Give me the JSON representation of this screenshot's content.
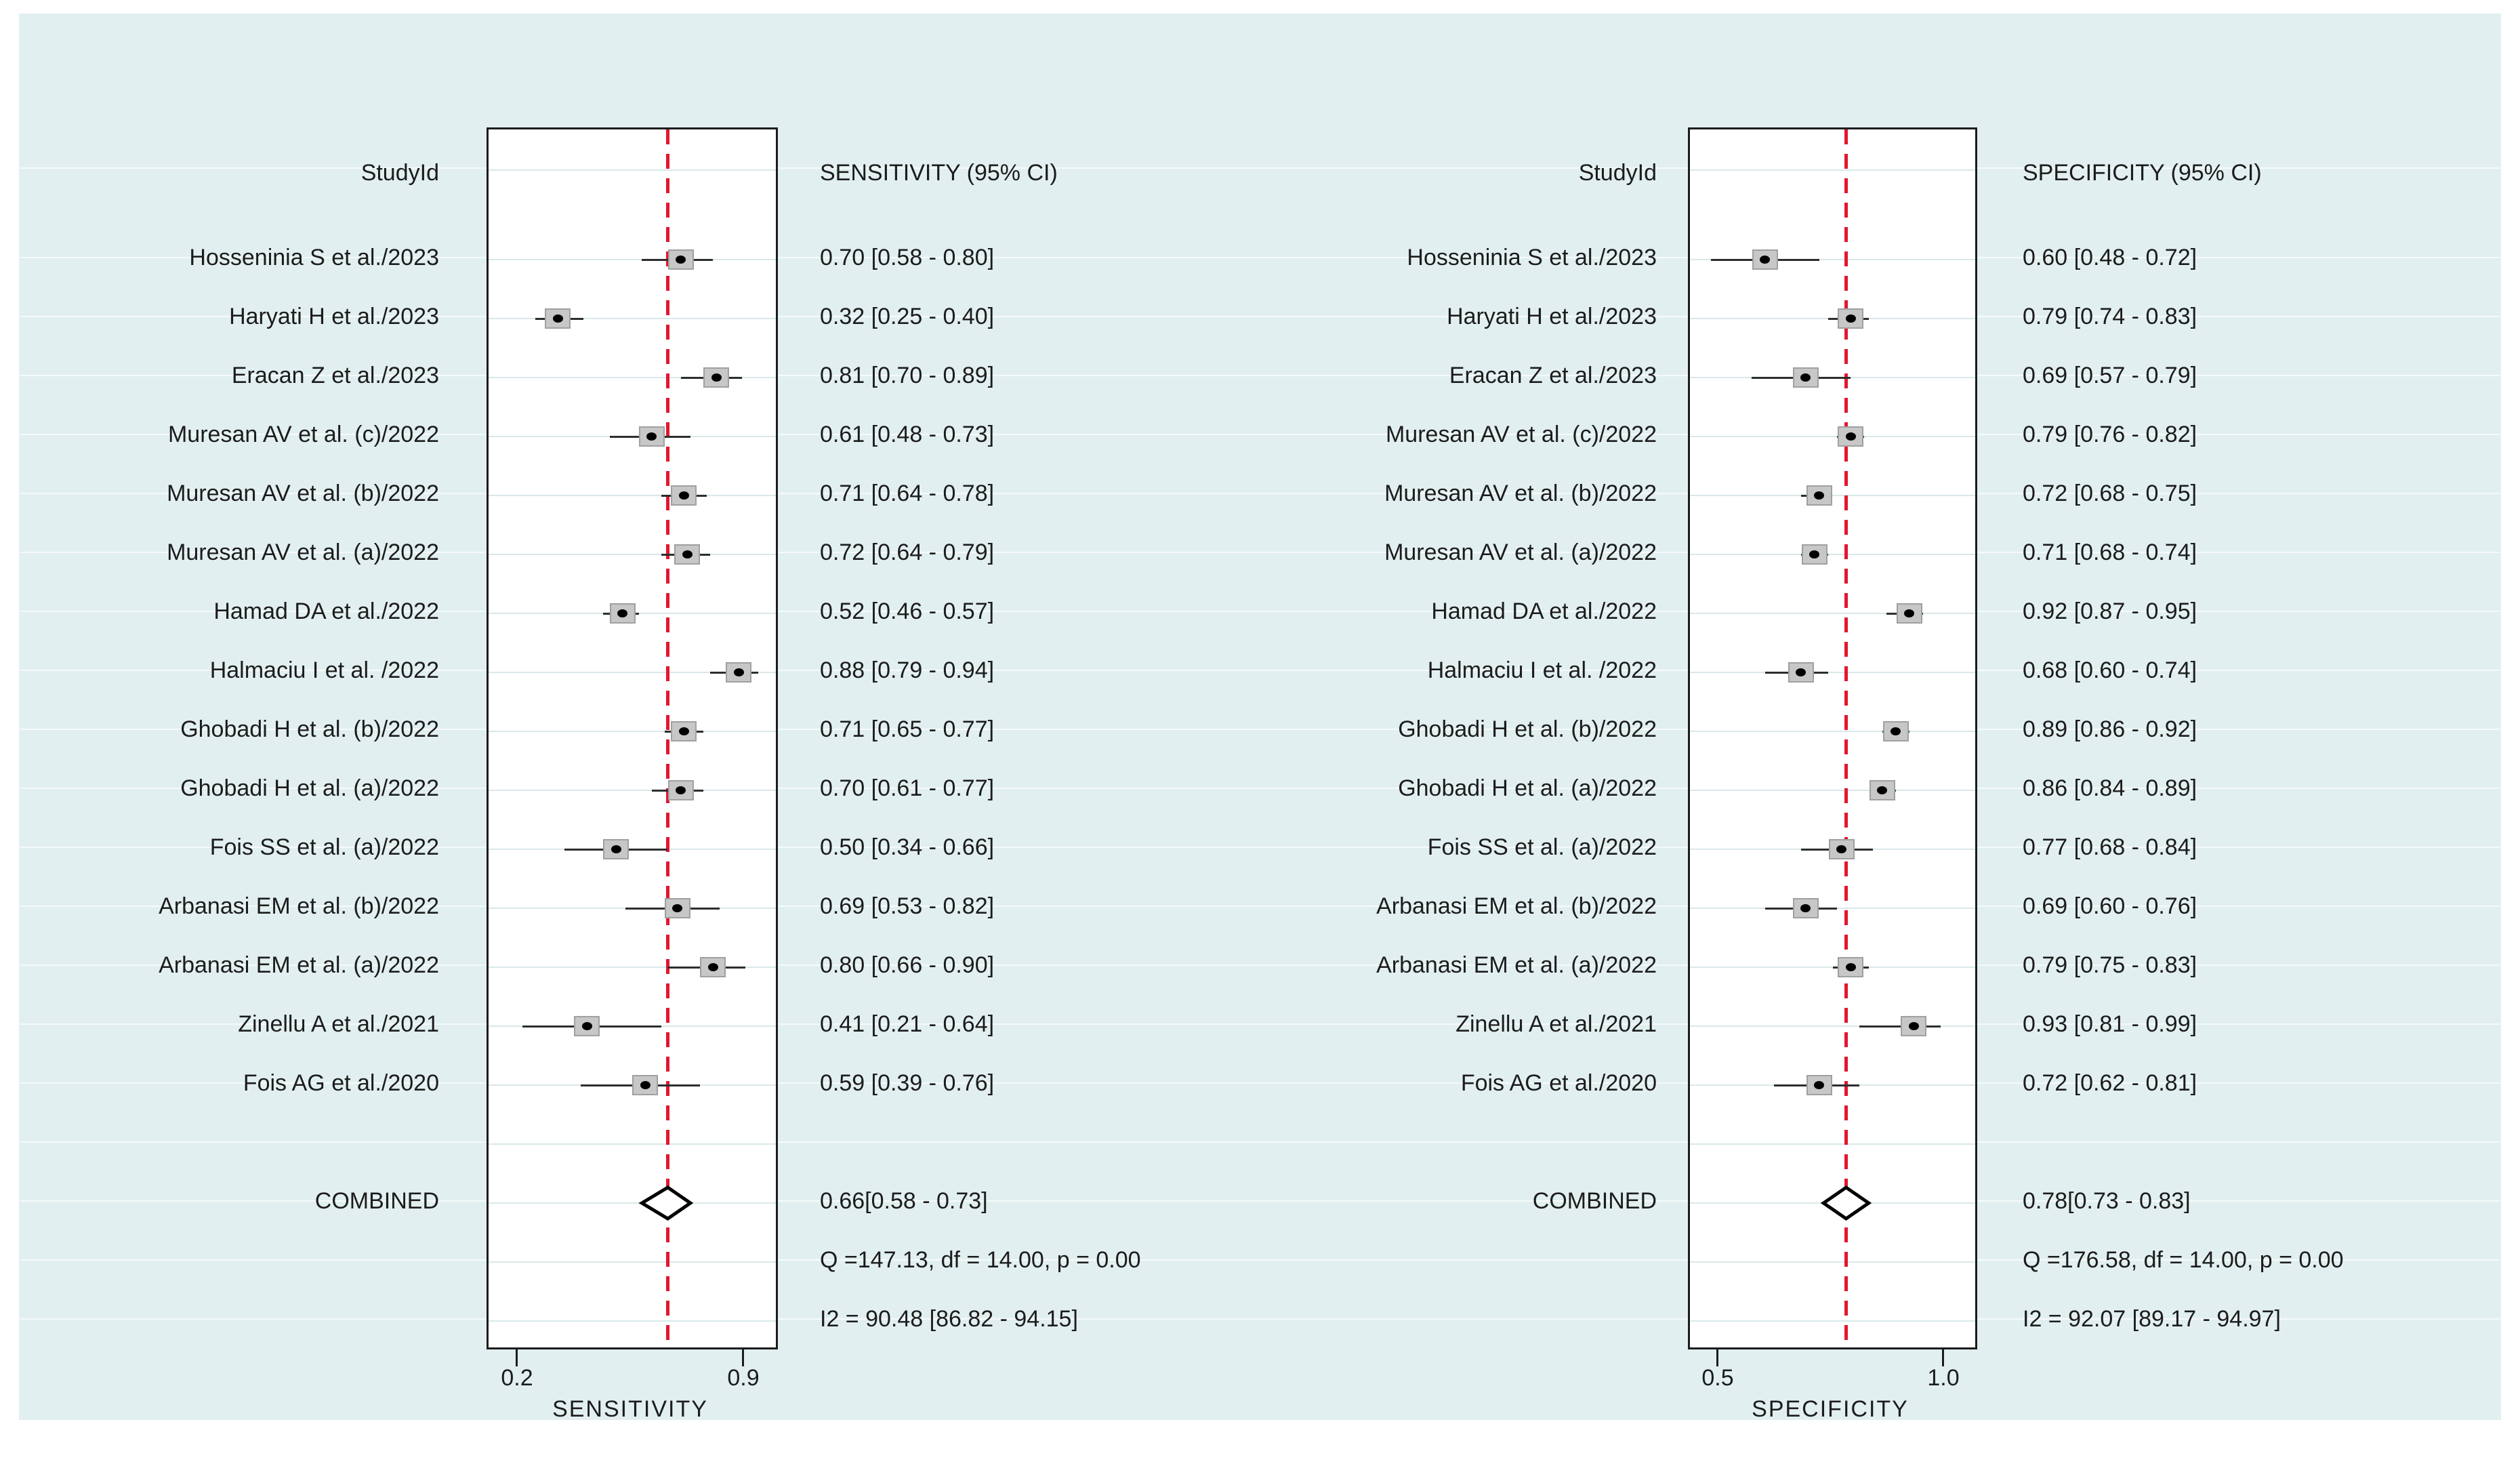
{
  "figure": {
    "headers": {
      "study_left": "StudyId",
      "study_right": "StudyId",
      "sens": "SENSITIVITY (95% CI)",
      "spec": "SPECIFICITY (95% CI)"
    },
    "colors": {
      "panel_bg": "#e2eff0",
      "plot_bg": "#ffffff",
      "frame": "#1c1c1c",
      "gridline": "#d9e8ea",
      "ref_line": "#e31730",
      "marker_fill": "#c7c7c7",
      "marker_border": "#a0a0a0",
      "text": "#1c1c1c"
    }
  },
  "chart_data": [
    {
      "type": "forest",
      "panel": "sensitivity",
      "title": "SENSITIVITY (95% CI)",
      "axis_label": "SENSITIVITY",
      "xlim": [
        0.2,
        0.9
      ],
      "x_ticks": [
        0.2,
        0.9
      ],
      "tick_labels": [
        "0.2",
        "0.9"
      ],
      "ref_line": 0.66,
      "legend_position": "none",
      "grid": true,
      "studies": [
        {
          "label": "Hosseninia S et al./2023",
          "est": 0.7,
          "lo": 0.58,
          "hi": 0.8,
          "ci_text": "0.70 [0.58 - 0.80]"
        },
        {
          "label": "Haryati H et al./2023",
          "est": 0.32,
          "lo": 0.25,
          "hi": 0.4,
          "ci_text": "0.32 [0.25 - 0.40]"
        },
        {
          "label": "Eracan Z et al./2023",
          "est": 0.81,
          "lo": 0.7,
          "hi": 0.89,
          "ci_text": "0.81 [0.70 - 0.89]"
        },
        {
          "label": "Muresan AV et al. (c)/2022",
          "est": 0.61,
          "lo": 0.48,
          "hi": 0.73,
          "ci_text": "0.61 [0.48 - 0.73]"
        },
        {
          "label": "Muresan AV et al. (b)/2022",
          "est": 0.71,
          "lo": 0.64,
          "hi": 0.78,
          "ci_text": "0.71 [0.64 - 0.78]"
        },
        {
          "label": "Muresan AV et al. (a)/2022",
          "est": 0.72,
          "lo": 0.64,
          "hi": 0.79,
          "ci_text": "0.72 [0.64 - 0.79]"
        },
        {
          "label": "Hamad DA et al./2022",
          "est": 0.52,
          "lo": 0.46,
          "hi": 0.57,
          "ci_text": "0.52 [0.46 - 0.57]"
        },
        {
          "label": "Halmaciu I et al. /2022",
          "est": 0.88,
          "lo": 0.79,
          "hi": 0.94,
          "ci_text": "0.88 [0.79 - 0.94]"
        },
        {
          "label": "Ghobadi H et al. (b)/2022",
          "est": 0.71,
          "lo": 0.65,
          "hi": 0.77,
          "ci_text": "0.71 [0.65 - 0.77]"
        },
        {
          "label": "Ghobadi H et al. (a)/2022",
          "est": 0.7,
          "lo": 0.61,
          "hi": 0.77,
          "ci_text": "0.70 [0.61 - 0.77]"
        },
        {
          "label": "Fois SS et al. (a)/2022",
          "est": 0.5,
          "lo": 0.34,
          "hi": 0.66,
          "ci_text": "0.50 [0.34 - 0.66]"
        },
        {
          "label": "Arbanasi EM et al. (b)/2022",
          "est": 0.69,
          "lo": 0.53,
          "hi": 0.82,
          "ci_text": "0.69 [0.53 - 0.82]"
        },
        {
          "label": "Arbanasi EM et al. (a)/2022",
          "est": 0.8,
          "lo": 0.66,
          "hi": 0.9,
          "ci_text": "0.80 [0.66 - 0.90]"
        },
        {
          "label": "Zinellu A et al./2021",
          "est": 0.41,
          "lo": 0.21,
          "hi": 0.64,
          "ci_text": "0.41 [0.21 - 0.64]"
        },
        {
          "label": "Fois AG et al./2020",
          "est": 0.59,
          "lo": 0.39,
          "hi": 0.76,
          "ci_text": "0.59 [0.39 - 0.76]"
        }
      ],
      "combined": {
        "label": "COMBINED",
        "est": 0.66,
        "lo": 0.58,
        "hi": 0.73,
        "ci_text": "0.66[0.58 - 0.73]"
      },
      "stats": {
        "q_text": "Q =147.13, df = 14.00, p =  0.00",
        "i2_text": "I2 = 90.48 [86.82 - 94.15]"
      }
    },
    {
      "type": "forest",
      "panel": "specificity",
      "title": "SPECIFICITY (95% CI)",
      "axis_label": "SPECIFICITY",
      "xlim": [
        0.5,
        1.0
      ],
      "x_ticks": [
        0.5,
        1.0
      ],
      "tick_labels": [
        "0.5",
        "1.0"
      ],
      "ref_line": 0.78,
      "legend_position": "none",
      "grid": true,
      "studies": [
        {
          "label": "Hosseninia S et al./2023",
          "est": 0.6,
          "lo": 0.48,
          "hi": 0.72,
          "ci_text": "0.60 [0.48 - 0.72]"
        },
        {
          "label": "Haryati H et al./2023",
          "est": 0.79,
          "lo": 0.74,
          "hi": 0.83,
          "ci_text": "0.79 [0.74 - 0.83]"
        },
        {
          "label": "Eracan Z et al./2023",
          "est": 0.69,
          "lo": 0.57,
          "hi": 0.79,
          "ci_text": "0.69 [0.57 - 0.79]"
        },
        {
          "label": "Muresan AV et al. (c)/2022",
          "est": 0.79,
          "lo": 0.76,
          "hi": 0.82,
          "ci_text": "0.79 [0.76 - 0.82]"
        },
        {
          "label": "Muresan AV et al. (b)/2022",
          "est": 0.72,
          "lo": 0.68,
          "hi": 0.75,
          "ci_text": "0.72 [0.68 - 0.75]"
        },
        {
          "label": "Muresan AV et al. (a)/2022",
          "est": 0.71,
          "lo": 0.68,
          "hi": 0.74,
          "ci_text": "0.71 [0.68 - 0.74]"
        },
        {
          "label": "Hamad DA et al./2022",
          "est": 0.92,
          "lo": 0.87,
          "hi": 0.95,
          "ci_text": "0.92 [0.87 - 0.95]"
        },
        {
          "label": "Halmaciu I et al. /2022",
          "est": 0.68,
          "lo": 0.6,
          "hi": 0.74,
          "ci_text": "0.68 [0.60 - 0.74]"
        },
        {
          "label": "Ghobadi H et al. (b)/2022",
          "est": 0.89,
          "lo": 0.86,
          "hi": 0.92,
          "ci_text": "0.89 [0.86 - 0.92]"
        },
        {
          "label": "Ghobadi H et al. (a)/2022",
          "est": 0.86,
          "lo": 0.84,
          "hi": 0.89,
          "ci_text": "0.86 [0.84 - 0.89]"
        },
        {
          "label": "Fois SS et al. (a)/2022",
          "est": 0.77,
          "lo": 0.68,
          "hi": 0.84,
          "ci_text": "0.77 [0.68 - 0.84]"
        },
        {
          "label": "Arbanasi EM et al. (b)/2022",
          "est": 0.69,
          "lo": 0.6,
          "hi": 0.76,
          "ci_text": "0.69 [0.60 - 0.76]"
        },
        {
          "label": "Arbanasi EM et al. (a)/2022",
          "est": 0.79,
          "lo": 0.75,
          "hi": 0.83,
          "ci_text": "0.79 [0.75 - 0.83]"
        },
        {
          "label": "Zinellu A et al./2021",
          "est": 0.93,
          "lo": 0.81,
          "hi": 0.99,
          "ci_text": "0.93 [0.81 - 0.99]"
        },
        {
          "label": "Fois AG et al./2020",
          "est": 0.72,
          "lo": 0.62,
          "hi": 0.81,
          "ci_text": "0.72 [0.62 - 0.81]"
        }
      ],
      "combined": {
        "label": "COMBINED",
        "est": 0.78,
        "lo": 0.73,
        "hi": 0.83,
        "ci_text": "0.78[0.73 - 0.83]"
      },
      "stats": {
        "q_text": "Q =176.58, df = 14.00, p =  0.00",
        "i2_text": "I2 = 92.07 [89.17 - 94.97]"
      }
    }
  ]
}
